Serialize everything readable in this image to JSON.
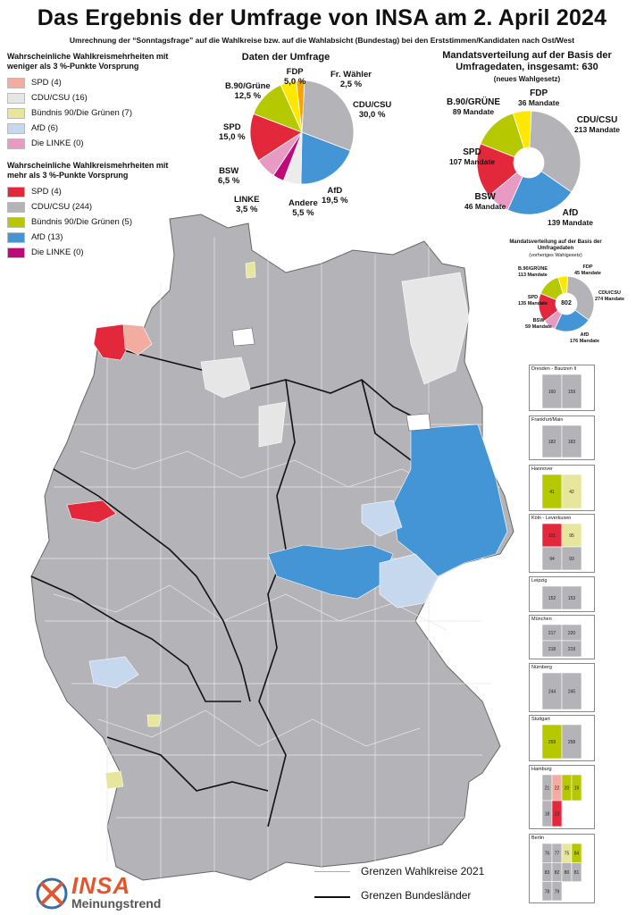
{
  "title": "Das Ergebnis der Umfrage von INSA am 2. April 2024",
  "subtitle": "Umrechnung der “Sonntagsfrage” auf die Wahlkreise bzw. auf die Wahlabsicht (Bundestag) bei den Erststimmen/Kandidaten nach Ost/West",
  "legend": {
    "weak_heading": "Wahrscheinliche Wahlkreismehrheiten mit weniger als 3 %-Punkte Vorsprung",
    "weak_items": [
      {
        "label": "SPD (4)",
        "color": "#f2aca0"
      },
      {
        "label": "CDU/CSU (16)",
        "color": "#e6e6e6"
      },
      {
        "label": "Bündnis 90/Die Grünen (7)",
        "color": "#e6e69c"
      },
      {
        "label": "AfD (6)",
        "color": "#c5d8ee"
      },
      {
        "label": "Die LINKE (0)",
        "color": "#e79bc2"
      }
    ],
    "strong_heading": "Wahrscheinliche Wahlkreismehrheiten mit mehr als 3 %-Punkte Vorsprung",
    "strong_items": [
      {
        "label": "SPD (4)",
        "color": "#e3283c"
      },
      {
        "label": "CDU/CSU (244)",
        "color": "#b4b4b8"
      },
      {
        "label": "Bündnis 90/Die Grünen (5)",
        "color": "#b5c800"
      },
      {
        "label": "AfD (13)",
        "color": "#4395d5"
      },
      {
        "label": "Die LINKE (0)",
        "color": "#bf0a7a"
      }
    ]
  },
  "chart_data": [
    {
      "type": "pie",
      "title": "Daten der Umfrage",
      "categories": [
        "CDU/CSU",
        "AfD",
        "Andere",
        "LINKE",
        "BSW",
        "SPD",
        "B.90/Grüne",
        "FDP",
        "Fr. Wähler"
      ],
      "values": [
        30.0,
        19.5,
        5.5,
        3.5,
        6.5,
        15.0,
        12.5,
        5.0,
        2.5
      ],
      "value_labels": [
        "30,0 %",
        "19,5 %",
        "5,5 %",
        "3,5 %",
        "6,5 %",
        "15,0 %",
        "12,5 %",
        "5,0 %",
        "2,5 %"
      ],
      "colors": [
        "#b4b4b8",
        "#4395d5",
        "#ececec",
        "#bf0a7a",
        "#e79bc2",
        "#e3283c",
        "#b5c800",
        "#ffe800",
        "#f5a400"
      ]
    },
    {
      "type": "pie",
      "title": "Mandatsverteilung auf der Basis der Umfragedaten, insgesamt: 630",
      "subtitle": "(neues Wahlgesetz)",
      "categories": [
        "CDU/CSU",
        "AfD",
        "BSW",
        "SPD",
        "B.90/GRÜNE",
        "FDP"
      ],
      "values": [
        213,
        139,
        46,
        107,
        89,
        36
      ],
      "value_labels": [
        "213 Mandate",
        "139 Mandate",
        "46 Mandate",
        "107 Mandate",
        "89 Mandate",
        "36 Mandate"
      ],
      "colors": [
        "#b4b4b8",
        "#4395d5",
        "#e79bc2",
        "#e3283c",
        "#b5c800",
        "#ffe800"
      ]
    },
    {
      "type": "pie",
      "title": "Mandatsverteilung auf der Basis der Umfragedaten",
      "subtitle": "(vorheriges Wahlgesetz)",
      "center_label": "802",
      "categories": [
        "CDU/CSU",
        "AfD",
        "BSW",
        "SPD",
        "B.90/GRÜNE",
        "FDP"
      ],
      "values": [
        274,
        176,
        59,
        135,
        113,
        45
      ],
      "value_labels": [
        "274 Mandate",
        "176 Mandate",
        "59 Mandate",
        "135 Mandate",
        "113 Mandate",
        "45 Mandate"
      ],
      "colors": [
        "#b4b4b8",
        "#4395d5",
        "#e79bc2",
        "#e3283c",
        "#b5c800",
        "#ffe800"
      ]
    }
  ],
  "insets": [
    {
      "caption": "Dresden - Bautzen II",
      "numbers": [
        "160",
        "159"
      ]
    },
    {
      "caption": "Frankfurt/Main",
      "numbers": [
        "182",
        "183"
      ]
    },
    {
      "caption": "Hannover",
      "numbers": [
        "41",
        "42"
      ]
    },
    {
      "caption": "Köln - Leverkusen",
      "numbers": [
        "101",
        "95",
        "94",
        "93"
      ]
    },
    {
      "caption": "Leipzig",
      "numbers": [
        "152",
        "153"
      ]
    },
    {
      "caption": "München",
      "numbers": [
        "217",
        "220",
        "218",
        "219"
      ]
    },
    {
      "caption": "Nürnberg",
      "numbers": [
        "244",
        "245"
      ]
    },
    {
      "caption": "Stuttgart",
      "numbers": [
        "259",
        "258"
      ]
    },
    {
      "caption": "Hamburg",
      "numbers": [
        "21",
        "22",
        "20",
        "19",
        "18",
        "23"
      ]
    },
    {
      "caption": "Berlin",
      "numbers": [
        "76",
        "77",
        "75",
        "84",
        "83",
        "82",
        "80",
        "81",
        "78",
        "79"
      ]
    }
  ],
  "map_legend": {
    "wahlkreise": "Grenzen Wahlkreise 2021",
    "bundeslaender": "Grenzen Bundesländer"
  },
  "logo": {
    "brand": "INSA",
    "tagline": "Meinungstrend"
  }
}
